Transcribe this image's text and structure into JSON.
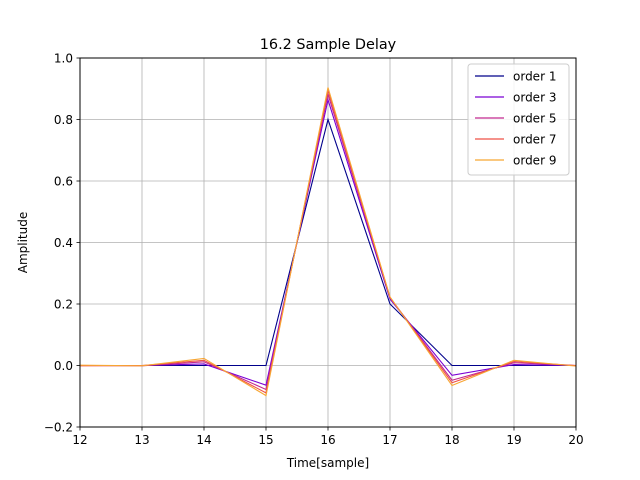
{
  "chart_data": {
    "type": "line",
    "title": "16.2 Sample Delay",
    "xlabel": "Time[sample]",
    "ylabel": "Amplitude",
    "xlim": [
      12,
      20
    ],
    "ylim": [
      -0.2,
      1.0
    ],
    "xticks": [
      12,
      13,
      14,
      15,
      16,
      17,
      18,
      19,
      20
    ],
    "yticks": [
      -0.2,
      0.0,
      0.2,
      0.4,
      0.6,
      0.8,
      1.0
    ],
    "xtick_labels": [
      "12",
      "13",
      "14",
      "15",
      "16",
      "17",
      "18",
      "19",
      "20"
    ],
    "ytick_labels": [
      "−0.2",
      "0.0",
      "0.2",
      "0.4",
      "0.6",
      "0.8",
      "1.0"
    ],
    "grid": true,
    "legend_position": "top-right",
    "x": [
      12,
      13,
      14,
      15,
      16,
      17,
      18,
      19,
      20
    ],
    "series": [
      {
        "name": "order 1",
        "color": "#00008b",
        "values": [
          0.0,
          0.0,
          0.0,
          0.0,
          0.8,
          0.2,
          0.0,
          0.0,
          0.0
        ]
      },
      {
        "name": "order 3",
        "color": "#7b00d4",
        "values": [
          0.0,
          0.0,
          0.005,
          -0.064,
          0.864,
          0.216,
          -0.032,
          0.003,
          0.0
        ]
      },
      {
        "name": "order 5",
        "color": "#c2298f",
        "values": [
          0.0,
          -0.001,
          0.012,
          -0.078,
          0.882,
          0.221,
          -0.048,
          0.009,
          0.0
        ]
      },
      {
        "name": "order 7",
        "color": "#ef5246",
        "values": [
          -0.001,
          0.0,
          0.017,
          -0.089,
          0.894,
          0.222,
          -0.056,
          0.013,
          0.0
        ]
      },
      {
        "name": "order 9",
        "color": "#f7a633",
        "values": [
          0.001,
          -0.001,
          0.023,
          -0.098,
          0.904,
          0.223,
          -0.065,
          0.017,
          -0.002
        ]
      }
    ]
  }
}
